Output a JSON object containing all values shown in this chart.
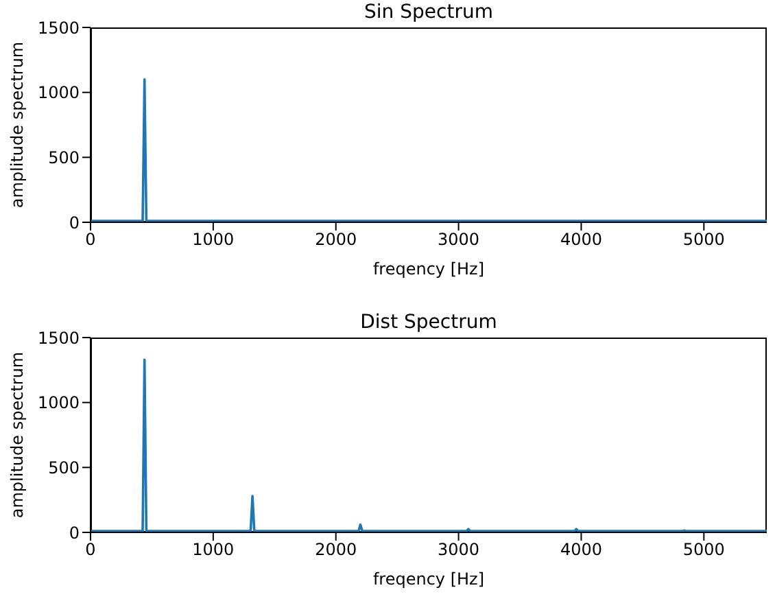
{
  "chart_data": [
    {
      "type": "line",
      "title": "Sin Spectrum",
      "xlabel": "freqency [Hz]",
      "ylabel": "amplitude spectrum",
      "xlim": [
        0,
        5512.5
      ],
      "xticks": [
        0,
        1000,
        2000,
        3000,
        4000,
        5000
      ],
      "ylim": [
        0,
        1500
      ],
      "yticks": [
        0,
        500,
        1000,
        1500
      ],
      "marker": "none",
      "line_style": "solid",
      "series": [
        {
          "color": "#1f77b4",
          "x": [
            0,
            425,
            440,
            455,
            5512.5
          ],
          "values": [
            10,
            10,
            1100,
            10,
            10
          ]
        }
      ]
    },
    {
      "type": "line",
      "title": "Dist Spectrum",
      "xlabel": "freqency [Hz]",
      "ylabel": "amplitude spectrum",
      "xlim": [
        0,
        5512.5
      ],
      "xticks": [
        0,
        1000,
        2000,
        3000,
        4000,
        5000
      ],
      "ylim": [
        0,
        1500
      ],
      "yticks": [
        0,
        500,
        1000,
        1500
      ],
      "marker": "none",
      "line_style": "solid",
      "series": [
        {
          "color": "#1f77b4",
          "x": [
            0,
            425,
            440,
            455,
            1305,
            1320,
            1335,
            2185,
            2200,
            2215,
            3065,
            3080,
            3095,
            3945,
            3960,
            3975,
            4825,
            4840,
            4855,
            5512.5
          ],
          "values": [
            10,
            10,
            1330,
            10,
            10,
            280,
            10,
            10,
            60,
            10,
            10,
            25,
            10,
            10,
            25,
            10,
            10,
            15,
            10,
            10
          ]
        }
      ]
    }
  ]
}
